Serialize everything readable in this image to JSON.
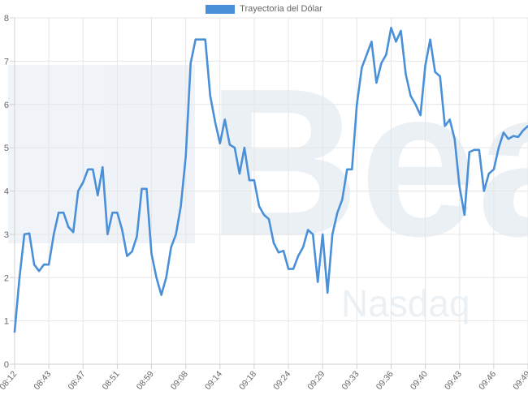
{
  "chart_data": {
    "type": "line",
    "legend": {
      "label": "Trayectoria del Dólar",
      "placement": "top-center"
    },
    "title": "",
    "xlabel": "",
    "ylabel": "",
    "grid": true,
    "x_tick_labels": [
      "08:12",
      "08:43",
      "08:47",
      "08:51",
      "08:59",
      "09:08",
      "09:14",
      "09:18",
      "09:24",
      "09:29",
      "09:33",
      "09:36",
      "09:40",
      "09:43",
      "09:46",
      "09:49"
    ],
    "y_ticks": [
      0,
      1,
      2,
      3,
      4,
      5,
      6,
      7,
      8
    ],
    "ylim": [
      0,
      8
    ],
    "series": [
      {
        "name": "Trayectoria del Dólar",
        "color": "#4a90d9",
        "values": [
          0.75,
          2.0,
          3.0,
          3.02,
          2.3,
          2.15,
          2.3,
          2.3,
          3.0,
          3.5,
          3.5,
          3.17,
          3.05,
          4.0,
          4.2,
          4.5,
          4.5,
          3.9,
          4.55,
          3.0,
          3.5,
          3.5,
          3.1,
          2.5,
          2.6,
          2.95,
          4.05,
          4.05,
          2.55,
          2.0,
          1.6,
          2.0,
          2.7,
          3.0,
          3.65,
          4.8,
          6.95,
          7.5,
          7.5,
          7.5,
          6.2,
          5.6,
          5.1,
          5.65,
          5.07,
          5.0,
          4.4,
          5.0,
          4.25,
          4.25,
          3.65,
          3.45,
          3.35,
          2.8,
          2.58,
          2.62,
          2.2,
          2.2,
          2.5,
          2.7,
          3.1,
          3.0,
          1.9,
          3.0,
          1.65,
          3.0,
          3.5,
          3.8,
          4.5,
          4.5,
          6.0,
          6.85,
          7.15,
          7.45,
          6.5,
          6.95,
          7.15,
          7.77,
          7.45,
          7.7,
          6.7,
          6.2,
          6.0,
          5.75,
          6.9,
          7.5,
          6.75,
          6.65,
          5.5,
          5.65,
          5.2,
          4.1,
          3.45,
          4.9,
          4.95,
          4.95,
          4.0,
          4.4,
          4.5,
          5.0,
          5.35,
          5.2,
          5.27,
          5.25,
          5.4,
          5.5
        ]
      }
    ]
  }
}
